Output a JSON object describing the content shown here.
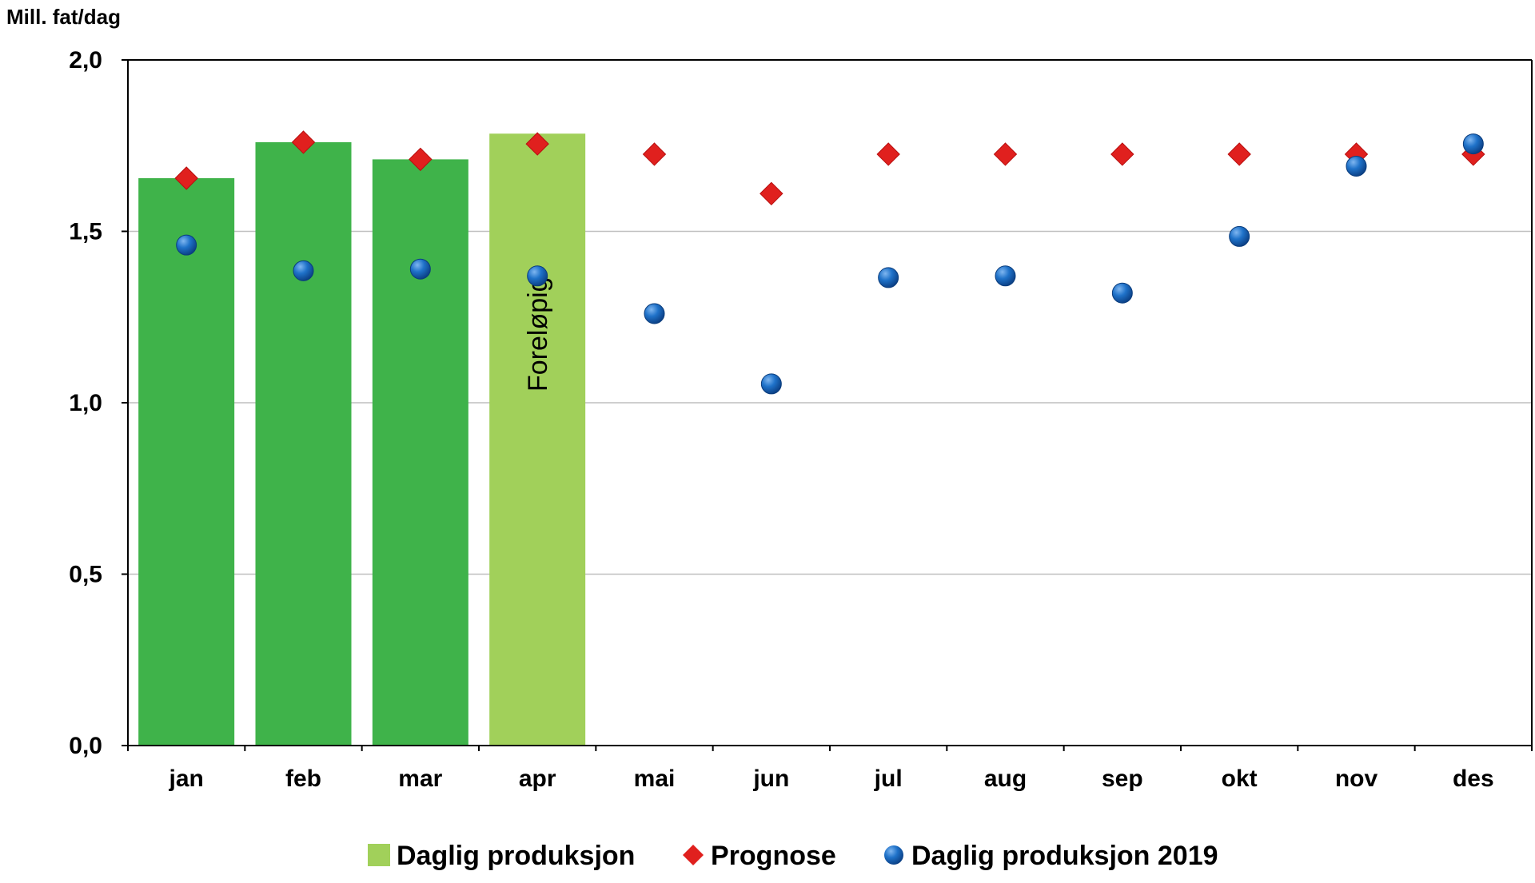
{
  "chart_data": {
    "type": "bar",
    "ylabel": "Mill. fat/dag",
    "ylim": [
      0,
      2.0
    ],
    "yticks": [
      {
        "value": 0.0,
        "label": "0,0"
      },
      {
        "value": 0.5,
        "label": "0,5"
      },
      {
        "value": 1.0,
        "label": "1,0"
      },
      {
        "value": 1.5,
        "label": "1,5"
      },
      {
        "value": 2.0,
        "label": "2,0"
      }
    ],
    "categories": [
      "jan",
      "feb",
      "mar",
      "apr",
      "mai",
      "jun",
      "jul",
      "aug",
      "sep",
      "okt",
      "nov",
      "des"
    ],
    "bar_annotation": {
      "category": "apr",
      "text": "Foreløpig"
    },
    "grid": true,
    "legend_position": "bottom",
    "series": [
      {
        "name": "Daglig produksjon",
        "kind": "bar",
        "color": "#3fb34a",
        "preliminary_color": "#a1d05a",
        "preliminary_index": 3,
        "values": [
          1.655,
          1.76,
          1.71,
          1.785,
          null,
          null,
          null,
          null,
          null,
          null,
          null,
          null
        ]
      },
      {
        "name": "Prognose",
        "kind": "diamond",
        "color": "#e0201e",
        "values": [
          1.655,
          1.76,
          1.71,
          1.755,
          1.725,
          1.61,
          1.725,
          1.725,
          1.725,
          1.725,
          1.725,
          1.725
        ]
      },
      {
        "name": "Daglig produksjon 2019",
        "kind": "circle",
        "color": "#1c6fc4",
        "values": [
          1.46,
          1.385,
          1.39,
          1.37,
          1.26,
          1.055,
          1.365,
          1.37,
          1.32,
          1.485,
          1.69,
          1.755
        ]
      }
    ]
  }
}
